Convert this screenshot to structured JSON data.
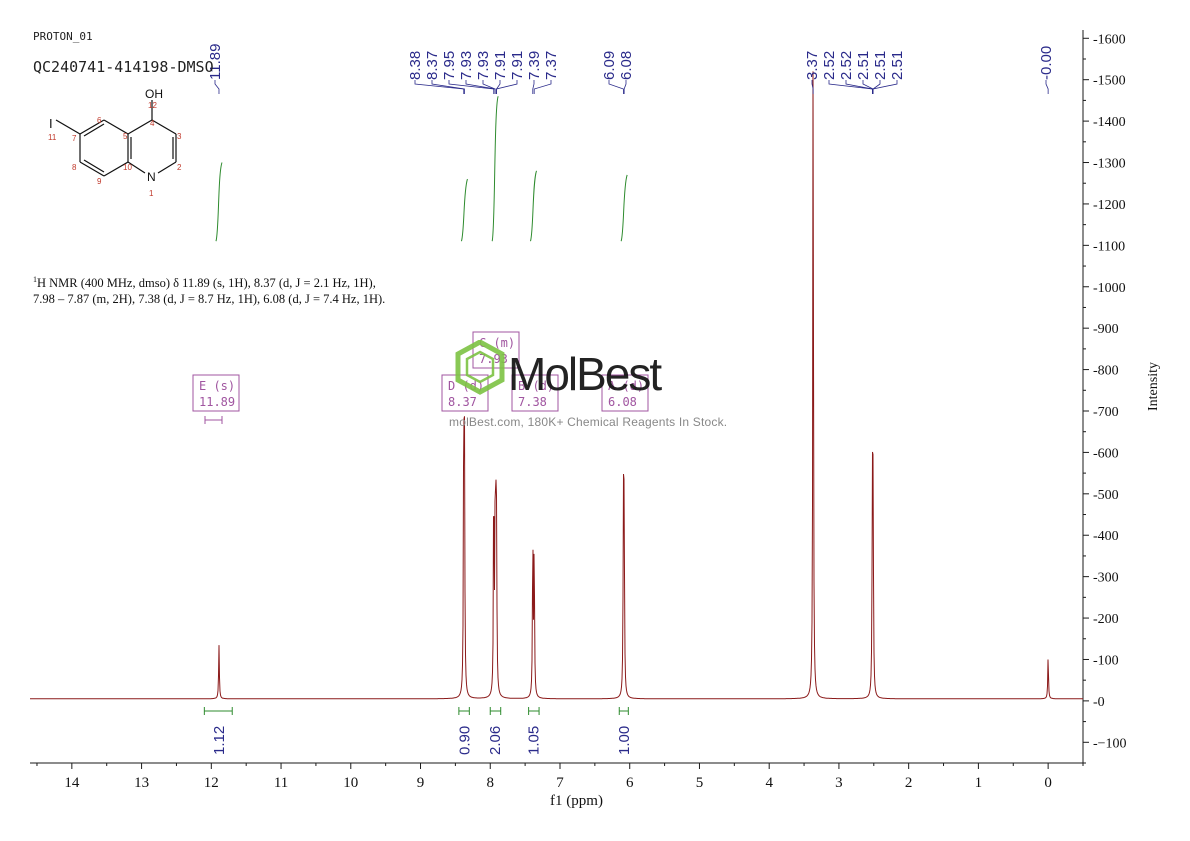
{
  "header": {
    "experiment": "PROTON_01",
    "sample": "QC240741-414198-DMSO"
  },
  "description": {
    "nucleus_sup": "1",
    "line1": "H NMR (400 MHz, dmso) δ 11.89 (s, 1H), 8.37 (d, J = 2.1 Hz, 1H),",
    "line2": "7.98 – 7.87 (m, 2H), 7.38 (d, J = 8.7 Hz, 1H), 6.08 (d, J = 7.4 Hz, 1H)."
  },
  "structure": {
    "atoms": {
      "oh": "OH",
      "n": "N",
      "i": "I"
    },
    "numbers": [
      "12",
      "4",
      "3",
      "2",
      "1",
      "10",
      "5",
      "6",
      "7",
      "8",
      "9",
      "11"
    ]
  },
  "watermark": {
    "brand": "MolBest",
    "tagline": "molBest.com, 180K+ Chemical Reagents In Stock."
  },
  "colors": {
    "spectrum": "#8b1a1a",
    "axis": "#1a1a1a",
    "peak_label": "#2a2a8a",
    "integral": "#2e8b2e",
    "multiplet_box": "#a055a0",
    "watermark_green": "#7cc242"
  },
  "chart_data": {
    "type": "line",
    "title": "",
    "xlabel": "f1 (ppm)",
    "ylabel": "Intensity",
    "xlim": [
      14.6,
      -0.5
    ],
    "ylim": [
      -150,
      1620
    ],
    "x_ticks": [
      14,
      13,
      12,
      11,
      10,
      9,
      8,
      7,
      6,
      5,
      4,
      3,
      2,
      1,
      0
    ],
    "y_ticks": [
      -100,
      0,
      100,
      200,
      300,
      400,
      500,
      600,
      700,
      800,
      900,
      1000,
      1100,
      1200,
      1300,
      1400,
      1500,
      1600
    ],
    "peak_labels": [
      {
        "group": "11.89",
        "labels": [
          "11.89"
        ]
      },
      {
        "group": "aromatic",
        "labels": [
          "8.38",
          "8.37",
          "7.95",
          "7.93",
          "7.93",
          "7.91",
          "7.91",
          "7.39",
          "7.37"
        ]
      },
      {
        "group": "6.08",
        "labels": [
          "6.09",
          "6.08"
        ]
      },
      {
        "group": "solvent",
        "labels": [
          "3.37",
          "2.52",
          "2.52",
          "2.51",
          "2.51",
          "2.51"
        ]
      },
      {
        "group": "tms",
        "labels": [
          "-0.00"
        ]
      }
    ],
    "peaks": [
      {
        "ppm": 11.89,
        "height": 130
      },
      {
        "ppm": 8.38,
        "height": 565
      },
      {
        "ppm": 8.37,
        "height": 555
      },
      {
        "ppm": 7.95,
        "height": 445
      },
      {
        "ppm": 7.93,
        "height": 370
      },
      {
        "ppm": 7.92,
        "height": 360
      },
      {
        "ppm": 7.91,
        "height": 350
      },
      {
        "ppm": 7.39,
        "height": 365
      },
      {
        "ppm": 7.37,
        "height": 355
      },
      {
        "ppm": 6.09,
        "height": 425
      },
      {
        "ppm": 6.08,
        "height": 420
      },
      {
        "ppm": 3.37,
        "height": 1520
      },
      {
        "ppm": 2.52,
        "height": 470
      },
      {
        "ppm": 2.51,
        "height": 460
      },
      {
        "ppm": 0.0,
        "height": 100
      }
    ],
    "integrals": [
      {
        "ppm": 11.89,
        "from": 12.1,
        "to": 11.7,
        "value": "1.12"
      },
      {
        "ppm": 8.37,
        "from": 8.45,
        "to": 8.3,
        "value": "0.90"
      },
      {
        "ppm": 7.93,
        "from": 8.0,
        "to": 7.85,
        "value": "2.06"
      },
      {
        "ppm": 7.38,
        "from": 7.45,
        "to": 7.3,
        "value": "1.05"
      },
      {
        "ppm": 6.08,
        "from": 6.15,
        "to": 6.02,
        "value": "1.00"
      }
    ],
    "integral_curves": [
      {
        "ppm": 11.89,
        "bottom": 1110,
        "top": 1300
      },
      {
        "ppm": 8.37,
        "bottom": 1110,
        "top": 1260
      },
      {
        "ppm": 7.93,
        "bottom": 1110,
        "top": 1460
      },
      {
        "ppm": 7.38,
        "bottom": 1110,
        "top": 1280
      },
      {
        "ppm": 6.08,
        "bottom": 1110,
        "top": 1270
      }
    ],
    "multiplets": [
      {
        "id": "E",
        "type": "(s)",
        "shift": "11.89"
      },
      {
        "id": "D",
        "type": "(d)",
        "shift": "8.37"
      },
      {
        "id": "C",
        "type": "(m)",
        "shift": "7.93"
      },
      {
        "id": "B",
        "type": "(d)",
        "shift": "7.38"
      },
      {
        "id": "A",
        "type": "(d)",
        "shift": "6.08"
      }
    ]
  }
}
